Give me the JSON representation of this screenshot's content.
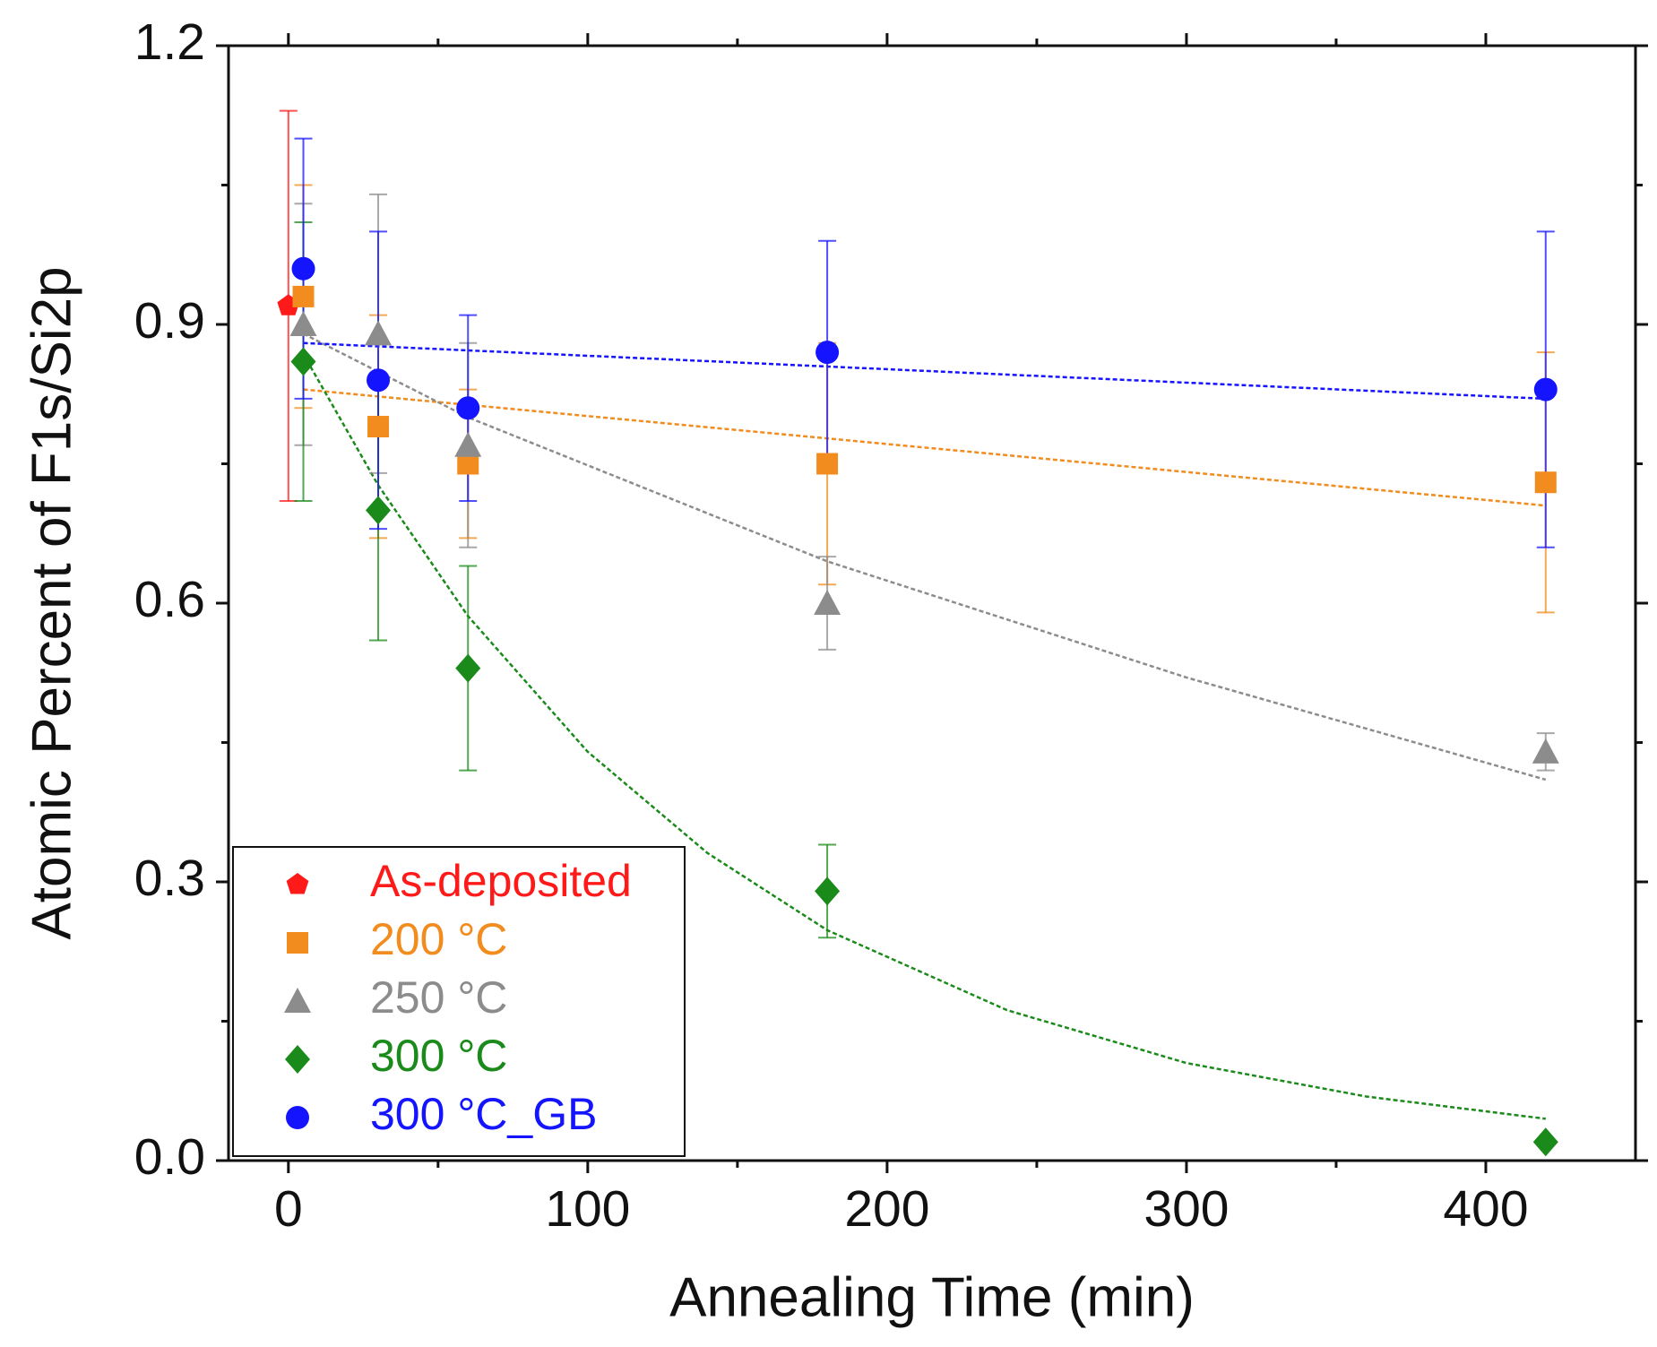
{
  "chart_data": {
    "type": "scatter",
    "x_label": "Annealing Time (min)",
    "y_label": "Atomic Percent of F1s/Si2p",
    "xlim": [
      -20,
      450
    ],
    "ylim": [
      0,
      1.2
    ],
    "xticks": [
      0,
      100,
      200,
      300,
      400
    ],
    "yticks": [
      {
        "value": 0,
        "label": "0.0"
      },
      0.3,
      0.6,
      0.9,
      1.2
    ],
    "xminorticks": [
      50,
      150,
      250,
      350
    ],
    "yminorticks": [
      0.15,
      0.45,
      0.75,
      1.05
    ],
    "legend": "lower left",
    "series": [
      {
        "name": "As-deposited",
        "color": "#ff1a1a",
        "marker": "pentagon",
        "x": [
          0
        ],
        "values": [
          0.92
        ],
        "errors": [
          0.21
        ]
      },
      {
        "name": "200 °C",
        "color": "#f28c1e",
        "marker": "square",
        "x": [
          5,
          30,
          60,
          180,
          420
        ],
        "values": [
          0.93,
          0.79,
          0.75,
          0.75,
          0.73
        ],
        "errors": [
          0.12,
          0.12,
          0.08,
          0.13,
          0.14
        ],
        "fit": {
          "x": [
            5,
            420
          ],
          "values": [
            0.83,
            0.705
          ]
        }
      },
      {
        "name": "250 °C",
        "color": "#8c8c8c",
        "marker": "triangle",
        "x": [
          5,
          30,
          60,
          180,
          420
        ],
        "values": [
          0.9,
          0.89,
          0.77,
          0.6,
          0.44
        ],
        "errors": [
          0.13,
          0.15,
          0.11,
          0.05,
          0.02
        ],
        "fit": {
          "x": [
            5,
            60,
            180,
            300,
            420
          ],
          "values": [
            0.89,
            0.8,
            0.645,
            0.52,
            0.41
          ]
        }
      },
      {
        "name": "300 °C",
        "color": "#1a8a1a",
        "marker": "diamond",
        "x": [
          5,
          30,
          60,
          180,
          420
        ],
        "values": [
          0.86,
          0.7,
          0.53,
          0.29,
          0.02
        ],
        "errors": [
          0.15,
          0.14,
          0.11,
          0.05,
          0
        ],
        "fit": {
          "x": [
            5,
            30,
            60,
            100,
            140,
            180,
            240,
            300,
            360,
            420
          ],
          "values": [
            0.868,
            0.727,
            0.586,
            0.44,
            0.331,
            0.248,
            0.162,
            0.105,
            0.069,
            0.045
          ]
        }
      },
      {
        "name": "300 °C_GB",
        "color": "#1414ff",
        "marker": "circle",
        "x": [
          5,
          30,
          60,
          180,
          420
        ],
        "values": [
          0.96,
          0.84,
          0.81,
          0.87,
          0.83
        ],
        "errors": [
          0.14,
          0.16,
          0.1,
          0.12,
          0.17
        ],
        "fit": {
          "x": [
            5,
            420
          ],
          "values": [
            0.88,
            0.82
          ]
        }
      }
    ]
  }
}
